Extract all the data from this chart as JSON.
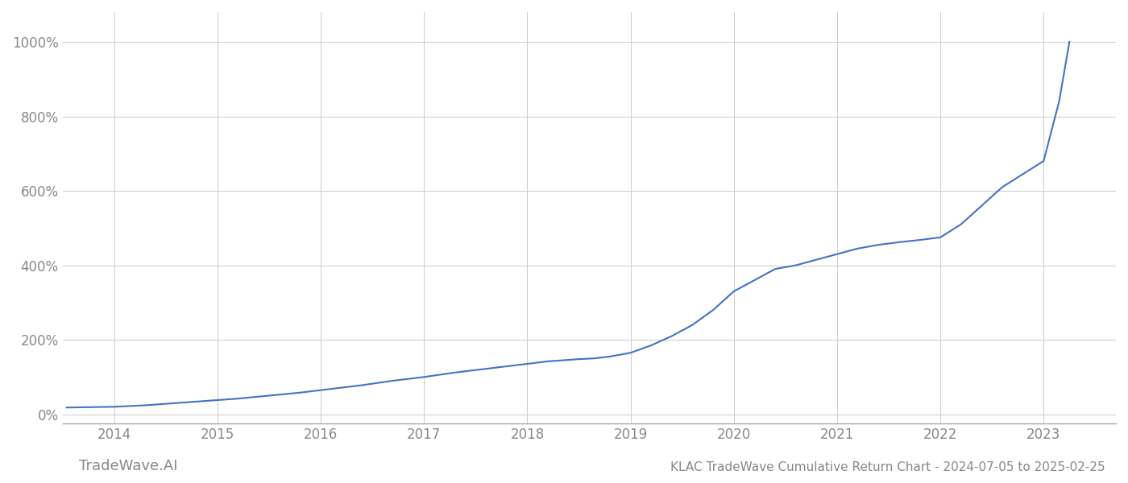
{
  "title": "KLAC TradeWave Cumulative Return Chart - 2024-07-05 to 2025-02-25",
  "watermark": "TradeWave.AI",
  "line_color": "#4472c4",
  "background_color": "#ffffff",
  "grid_color": "#cccccc",
  "x_years": [
    2014,
    2015,
    2016,
    2017,
    2018,
    2019,
    2020,
    2021,
    2022,
    2023
  ],
  "x_tick_labels": [
    "2014",
    "2015",
    "2016",
    "2017",
    "2018",
    "2019",
    "2020",
    "2021",
    "2022",
    "2023"
  ],
  "y_ticks": [
    0,
    200,
    400,
    600,
    800,
    1000
  ],
  "y_tick_labels": [
    "0%",
    "200%",
    "400%",
    "600%",
    "800%",
    "1000%"
  ],
  "xlim": [
    2013.5,
    2023.7
  ],
  "ylim": [
    -25,
    1080
  ],
  "data_x": [
    2013.54,
    2014.0,
    2014.3,
    2014.6,
    2014.9,
    2015.2,
    2015.5,
    2015.8,
    2016.1,
    2016.4,
    2016.7,
    2017.0,
    2017.3,
    2017.6,
    2017.9,
    2018.2,
    2018.5,
    2018.65,
    2018.8,
    2019.0,
    2019.2,
    2019.4,
    2019.6,
    2019.8,
    2020.0,
    2020.2,
    2020.4,
    2020.6,
    2020.8,
    2021.0,
    2021.2,
    2021.4,
    2021.6,
    2021.8,
    2022.0,
    2022.2,
    2022.4,
    2022.6,
    2022.8,
    2023.0,
    2023.15,
    2023.25
  ],
  "data_y": [
    18,
    20,
    24,
    30,
    36,
    42,
    50,
    58,
    68,
    78,
    90,
    100,
    112,
    122,
    132,
    142,
    148,
    150,
    155,
    165,
    185,
    210,
    240,
    280,
    330,
    360,
    390,
    400,
    415,
    430,
    445,
    455,
    462,
    468,
    475,
    510,
    560,
    610,
    645,
    680,
    840,
    1000
  ],
  "title_fontsize": 11,
  "tick_fontsize": 12,
  "watermark_fontsize": 13,
  "line_width": 1.5
}
